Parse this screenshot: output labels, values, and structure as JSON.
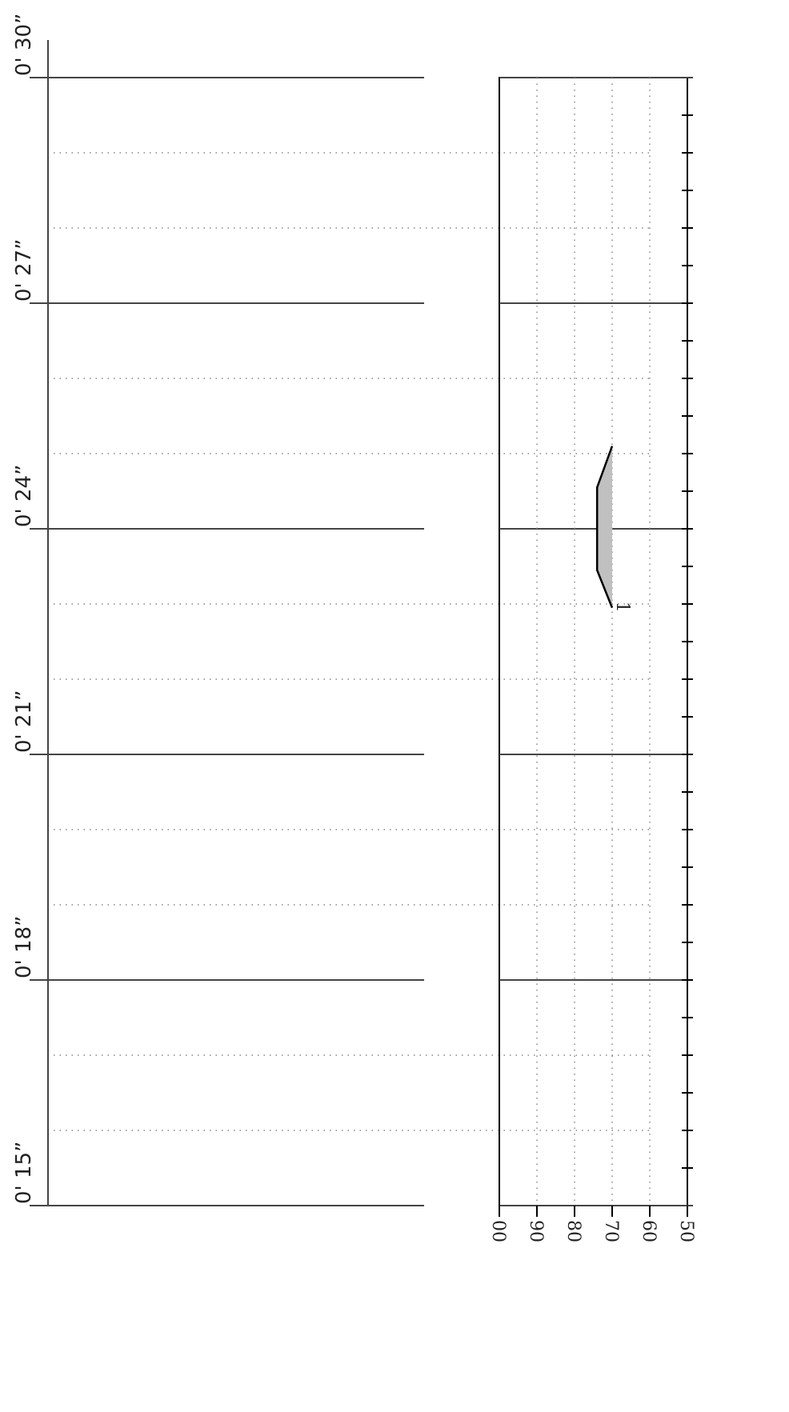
{
  "chart_data": {
    "type": "area",
    "x": [
      25.1,
      24.55,
      23.45,
      22.95
    ],
    "values": [
      70,
      74,
      74,
      70
    ],
    "color": "#c0c0c0",
    "line_color": "#000000",
    "annotation": "1",
    "xlim": [
      15,
      30
    ],
    "xticks": [
      {
        "value": 15,
        "label": "0' 15”"
      },
      {
        "value": 18,
        "label": "0' 18”"
      },
      {
        "value": 21,
        "label": "0' 21”"
      },
      {
        "value": 24,
        "label": "0' 24”"
      },
      {
        "value": 27,
        "label": "0' 27”"
      },
      {
        "value": 30,
        "label": "0' 30”"
      }
    ],
    "xticks_minor": [
      15.5,
      16,
      16.5,
      17,
      17.5,
      18,
      18.5,
      19,
      19.5,
      20,
      20.5,
      21,
      21.5,
      22,
      22.5,
      23,
      23.5,
      24,
      24.5,
      25,
      25.5,
      26,
      26.5,
      27,
      27.5,
      28,
      28.5,
      29,
      29.5
    ],
    "ylim": [
      100,
      50
    ],
    "yticks": [
      {
        "value": 100,
        "label": "00"
      },
      90,
      80,
      70,
      60,
      50
    ],
    "grid": true
  }
}
